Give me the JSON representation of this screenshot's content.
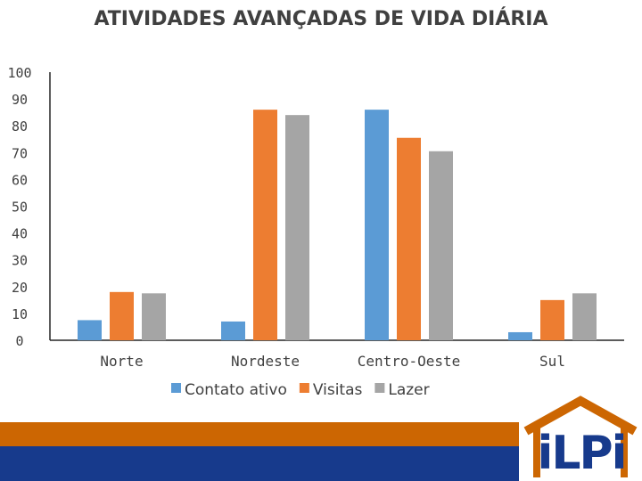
{
  "slide": {
    "colors": {
      "orange_band": "#cc6602",
      "navy_band": "#173a8c",
      "roof": "#cc6602"
    },
    "logo": {
      "text": "iLPi"
    }
  },
  "chart_data": {
    "type": "bar",
    "title": "ATIVIDADES AVANÇADAS DE VIDA DIÁRIA",
    "categories": [
      "Norte",
      "Nordeste",
      "Centro-Oeste",
      "Sul"
    ],
    "series": [
      {
        "name": "Contato ativo",
        "color": "#5b9bd5",
        "values": [
          7.5,
          7.0,
          86,
          3.0
        ]
      },
      {
        "name": "Visitas",
        "color": "#ed7d31",
        "values": [
          18,
          86,
          75.5,
          15
        ]
      },
      {
        "name": "Lazer",
        "color": "#a5a5a5",
        "values": [
          17.5,
          84,
          70.5,
          17.5
        ]
      }
    ],
    "ylim": [
      0,
      100
    ],
    "yticks": [
      0,
      10,
      20,
      30,
      40,
      50,
      60,
      70,
      80,
      90,
      100
    ],
    "xlabel": "",
    "ylabel": "",
    "grid": false,
    "legend": "bottom"
  }
}
